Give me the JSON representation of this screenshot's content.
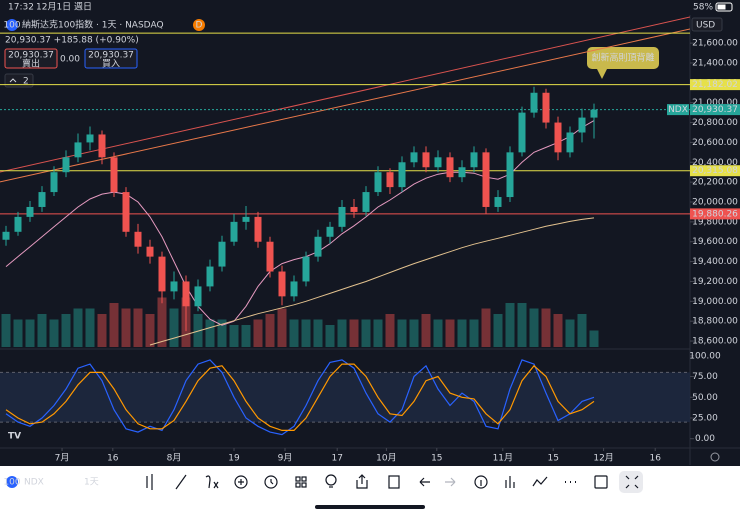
{
  "status_bar": {
    "time": "17:32",
    "date": "12月1日 週日",
    "battery": "58%"
  },
  "header": {
    "logo_text": "100",
    "symbol_title": "納斯达克100指数 · 1天 · NASDAQ",
    "badge": "D",
    "quote": "20,930.37 +185.88 (+0.90%)",
    "sell_price": "20,930.37",
    "sell_label": "賣出",
    "spread": "0.00",
    "buy_price": "20,930.37",
    "buy_label": "買入",
    "indicator_count": "2"
  },
  "chart_data": {
    "type": "candlestick",
    "currency": "USD",
    "last_tag": "NDX",
    "xlim": [
      -0.5,
      57
    ],
    "xticks": [
      {
        "value": 4.67,
        "label": "7月"
      },
      {
        "value": 8.9,
        "label": "16"
      },
      {
        "value": 14,
        "label": "8月"
      },
      {
        "value": 19,
        "label": "19"
      },
      {
        "value": 23.25,
        "label": "9月"
      },
      {
        "value": 27.6,
        "label": "17"
      },
      {
        "value": 31.7,
        "label": "10月"
      },
      {
        "value": 35.9,
        "label": "15"
      },
      {
        "value": 41.4,
        "label": "11月"
      },
      {
        "value": 45.6,
        "label": "15"
      },
      {
        "value": 49.8,
        "label": "12月"
      },
      {
        "value": 54.1,
        "label": "16"
      }
    ],
    "ylim": [
      18540,
      21883
    ],
    "yticks": [
      {
        "value": 18600,
        "label": "18,600.00"
      },
      {
        "value": 18800,
        "label": "18,800.00"
      },
      {
        "value": 19000,
        "label": "19,000.00"
      },
      {
        "value": 19200,
        "label": "19,200.00"
      },
      {
        "value": 19400,
        "label": "19,400.00"
      },
      {
        "value": 19600,
        "label": "19,600.00"
      },
      {
        "value": 19800,
        "label": "19,800.00"
      },
      {
        "value": 20000,
        "label": "20,000.00"
      },
      {
        "value": 20200,
        "label": "20,200.00"
      },
      {
        "value": 20400,
        "label": "20,400.00"
      },
      {
        "value": 20600,
        "label": "20,600.00"
      },
      {
        "value": 20800,
        "label": "20,800.00"
      },
      {
        "value": 21000,
        "label": "21,000.00"
      },
      {
        "value": 21200,
        "label": "21,200.00"
      },
      {
        "value": 21400,
        "label": "21,400.00"
      },
      {
        "value": 21600,
        "label": "21,600.00"
      }
    ],
    "up_color": "#26a69a",
    "down_color": "#ef5350",
    "ohlc": [
      [
        19620,
        19760,
        19560,
        19700
      ],
      [
        19700,
        19900,
        19660,
        19850
      ],
      [
        19850,
        20010,
        19800,
        19950
      ],
      [
        19950,
        20160,
        19900,
        20100
      ],
      [
        20100,
        20360,
        20060,
        20300
      ],
      [
        20300,
        20520,
        20250,
        20450
      ],
      [
        20450,
        20690,
        20400,
        20600
      ],
      [
        20600,
        20760,
        20520,
        20680
      ],
      [
        20680,
        20720,
        20380,
        20450
      ],
      [
        20450,
        20500,
        20050,
        20100
      ],
      [
        20100,
        20150,
        19650,
        19700
      ],
      [
        19700,
        19780,
        19480,
        19550
      ],
      [
        19550,
        19620,
        19380,
        19450
      ],
      [
        19450,
        19500,
        18980,
        19100
      ],
      [
        19100,
        19300,
        19020,
        19200
      ],
      [
        19200,
        19260,
        18700,
        18950
      ],
      [
        18950,
        19220,
        18900,
        19150
      ],
      [
        19150,
        19420,
        19100,
        19350
      ],
      [
        19350,
        19660,
        19300,
        19600
      ],
      [
        19600,
        19880,
        19560,
        19800
      ],
      [
        19800,
        19960,
        19720,
        19850
      ],
      [
        19850,
        19900,
        19540,
        19600
      ],
      [
        19600,
        19650,
        19240,
        19300
      ],
      [
        19300,
        19360,
        18960,
        19050
      ],
      [
        19050,
        19260,
        19000,
        19200
      ],
      [
        19200,
        19500,
        19150,
        19450
      ],
      [
        19450,
        19720,
        19400,
        19650
      ],
      [
        19650,
        19800,
        19580,
        19750
      ],
      [
        19750,
        20020,
        19700,
        19950
      ],
      [
        19950,
        20030,
        19840,
        19900
      ],
      [
        19900,
        20160,
        19860,
        20100
      ],
      [
        20100,
        20360,
        20060,
        20300
      ],
      [
        20300,
        20340,
        20080,
        20150
      ],
      [
        20150,
        20460,
        20100,
        20400
      ],
      [
        20400,
        20560,
        20350,
        20500
      ],
      [
        20500,
        20560,
        20300,
        20350
      ],
      [
        20350,
        20520,
        20300,
        20450
      ],
      [
        20450,
        20500,
        20200,
        20250
      ],
      [
        20250,
        20420,
        20200,
        20350
      ],
      [
        20350,
        20560,
        20300,
        20500
      ],
      [
        20500,
        20540,
        19880,
        19950
      ],
      [
        19950,
        20120,
        19900,
        20050
      ],
      [
        20050,
        20560,
        20000,
        20500
      ],
      [
        20500,
        20960,
        20460,
        20900
      ],
      [
        20900,
        21160,
        20850,
        21100
      ],
      [
        21100,
        21140,
        20740,
        20800
      ],
      [
        20800,
        20860,
        20420,
        20500
      ],
      [
        20500,
        20760,
        20450,
        20700
      ],
      [
        20700,
        20940,
        20600,
        20850
      ],
      [
        20850,
        20990,
        20640,
        20930.37
      ]
    ],
    "volume": [
      6,
      5,
      5,
      6,
      5,
      6,
      7,
      7,
      6,
      8,
      7,
      7,
      6,
      9,
      7,
      9,
      6,
      5,
      5,
      4,
      4,
      5,
      6,
      7,
      5,
      5,
      5,
      4,
      5,
      5,
      5,
      5,
      6,
      5,
      5,
      6,
      5,
      5,
      5,
      5,
      7,
      6,
      8,
      8,
      7,
      7,
      6,
      5,
      6,
      3
    ],
    "volume_lim": [
      0,
      20
    ],
    "moving_averages": [
      {
        "color": "#e59ac0",
        "values": [
          19350,
          19450,
          19550,
          19650,
          19750,
          19850,
          19950,
          20030,
          20080,
          20100,
          20080,
          20000,
          19850,
          19650,
          19400,
          19150,
          18950,
          18820,
          18760,
          18800,
          18950,
          19150,
          19300,
          19380,
          19420,
          19450,
          19500,
          19580,
          19680,
          19760,
          19850,
          19950,
          20020,
          20100,
          20180,
          20240,
          20280,
          20300,
          20300,
          20290,
          20250,
          20230,
          20280,
          20400,
          20500,
          20550,
          20600,
          20660,
          20750,
          20820
        ]
      },
      {
        "color": "#e3c28f",
        "values": [
          null,
          null,
          null,
          null,
          null,
          null,
          null,
          null,
          null,
          null,
          null,
          null,
          18560,
          18595,
          18630,
          18665,
          18700,
          18735,
          18770,
          18805,
          18840,
          18875,
          18905,
          18935,
          18965,
          19000,
          19040,
          19080,
          19120,
          19160,
          19200,
          19245,
          19290,
          19335,
          19380,
          19420,
          19460,
          19500,
          19540,
          19575,
          19605,
          19635,
          19665,
          19695,
          19725,
          19755,
          19780,
          19805,
          19825,
          19840
        ]
      }
    ],
    "hlines": [
      {
        "value": 21700,
        "color": "#e6e04a"
      },
      {
        "value": 21182.02,
        "label": "21,182.02",
        "color": "#e6e04a"
      },
      {
        "value": 20930.37,
        "label": "20,930.37",
        "color": "#26a69a",
        "dashed": true
      },
      {
        "value": 20315.08,
        "label": "20,315.08",
        "color": "#e6e04a"
      },
      {
        "value": 19880.26,
        "label": "19,880.26",
        "color": "#ef5350"
      }
    ],
    "trendlines": [
      {
        "from": [
          -0.5,
          20302
        ],
        "to": [
          57,
          21863
        ],
        "color": "#d9534f"
      },
      {
        "from": [
          -0.5,
          20202
        ],
        "to": [
          57,
          21742
        ],
        "color": "#e8784a"
      }
    ],
    "annotation": "創新高則頂背離",
    "stochastic": {
      "ylim": [
        -10,
        107
      ],
      "bands": [
        20,
        80
      ],
      "yticks": [
        {
          "value": 0,
          "label": "0.00"
        },
        {
          "value": 25,
          "label": "25.00"
        },
        {
          "value": 50,
          "label": "50.00"
        },
        {
          "value": 75,
          "label": "75.00"
        },
        {
          "value": 100,
          "label": "100.00"
        }
      ],
      "series": [
        {
          "color": "#2962ff",
          "values": [
            30,
            20,
            15,
            25,
            40,
            60,
            85,
            90,
            70,
            35,
            12,
            8,
            15,
            10,
            35,
            70,
            90,
            95,
            80,
            50,
            25,
            15,
            8,
            5,
            15,
            40,
            70,
            92,
            95,
            85,
            55,
            30,
            20,
            35,
            75,
            88,
            60,
            40,
            55,
            45,
            15,
            12,
            60,
            95,
            90,
            55,
            22,
            30,
            45,
            50
          ]
        },
        {
          "color": "#ff9800",
          "values": [
            35,
            25,
            18,
            20,
            30,
            45,
            65,
            80,
            80,
            60,
            35,
            18,
            12,
            12,
            22,
            45,
            70,
            85,
            88,
            70,
            45,
            25,
            15,
            10,
            10,
            25,
            50,
            75,
            90,
            90,
            75,
            50,
            30,
            28,
            45,
            70,
            75,
            55,
            50,
            48,
            30,
            18,
            35,
            70,
            88,
            75,
            45,
            30,
            35,
            45
          ]
        }
      ]
    }
  },
  "toolbar": {
    "logo_text": "100",
    "symbol": "NDX",
    "interval": "1天"
  }
}
